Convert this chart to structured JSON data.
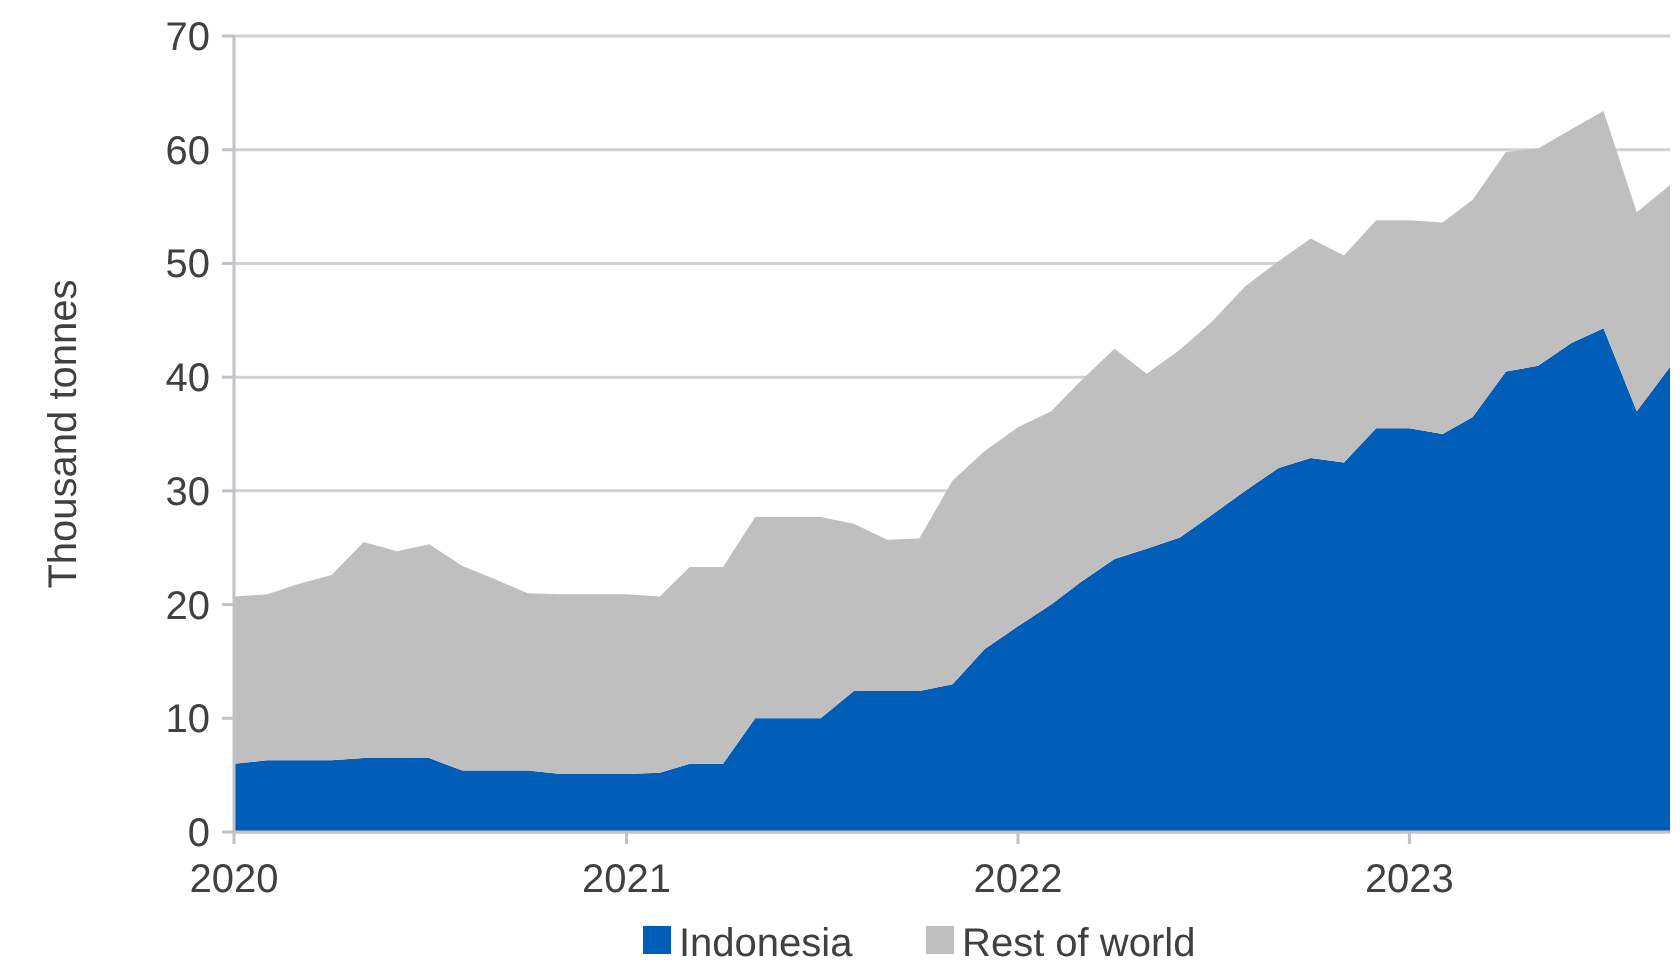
{
  "chart_data": {
    "type": "area",
    "stacked": true,
    "ylabel": "Thousand tonnes",
    "x": [
      "2020-01",
      "2020-02",
      "2020-03",
      "2020-04",
      "2020-05",
      "2020-06",
      "2020-07",
      "2020-08",
      "2020-09",
      "2020-10",
      "2020-11",
      "2020-12",
      "2021-01",
      "2021-02",
      "2021-03",
      "2021-04",
      "2021-05",
      "2021-06",
      "2021-07",
      "2021-08",
      "2021-09",
      "2021-10",
      "2021-11",
      "2021-12",
      "2022-01",
      "2022-02",
      "2022-03",
      "2022-04",
      "2022-05",
      "2022-06",
      "2022-07",
      "2022-08",
      "2022-09",
      "2022-10",
      "2022-11",
      "2022-12",
      "2023-01",
      "2023-02",
      "2023-03",
      "2023-04",
      "2023-05",
      "2023-06",
      "2023-07",
      "2023-08",
      "2023-09"
    ],
    "series": [
      {
        "name": "Indonesia",
        "color": "#005eb8",
        "values": [
          6.0,
          6.3,
          6.3,
          6.3,
          6.5,
          6.5,
          6.5,
          5.4,
          5.4,
          5.4,
          5.1,
          5.1,
          5.1,
          5.2,
          6.0,
          6.0,
          10.0,
          10.0,
          10.0,
          12.4,
          12.4,
          12.4,
          13.0,
          16.1,
          18.1,
          20.0,
          22.0,
          24.0,
          24.9,
          25.9,
          27.9,
          30.0,
          32.0,
          32.9,
          32.5,
          35.5,
          35.5,
          35.0,
          36.5,
          40.5,
          41.0,
          43.0,
          44.3,
          37.0,
          40.9
        ]
      },
      {
        "name": "Rest of world",
        "color": "#bfbfbf",
        "values": [
          14.7,
          14.6,
          15.5,
          16.3,
          19.0,
          18.2,
          18.8,
          18.0,
          16.8,
          15.6,
          15.8,
          15.8,
          15.8,
          15.5,
          17.3,
          17.3,
          17.7,
          17.7,
          17.7,
          14.7,
          13.3,
          13.4,
          17.9,
          17.4,
          17.5,
          17.0,
          17.7,
          18.5,
          15.4,
          16.5,
          17.0,
          18.0,
          18.2,
          19.3,
          18.2,
          18.3,
          18.3,
          18.6,
          19.1,
          19.3,
          19.1,
          18.8,
          19.1,
          17.5,
          16.0
        ]
      }
    ],
    "xlim": [
      "2020-01",
      "2023-09"
    ],
    "xticks": [
      "2020",
      "2021",
      "2022",
      "2023"
    ],
    "ylim": [
      0,
      70
    ],
    "yticks": [
      0,
      10,
      20,
      30,
      40,
      50,
      60,
      70
    ],
    "grid": "y",
    "legend": "bottom"
  }
}
